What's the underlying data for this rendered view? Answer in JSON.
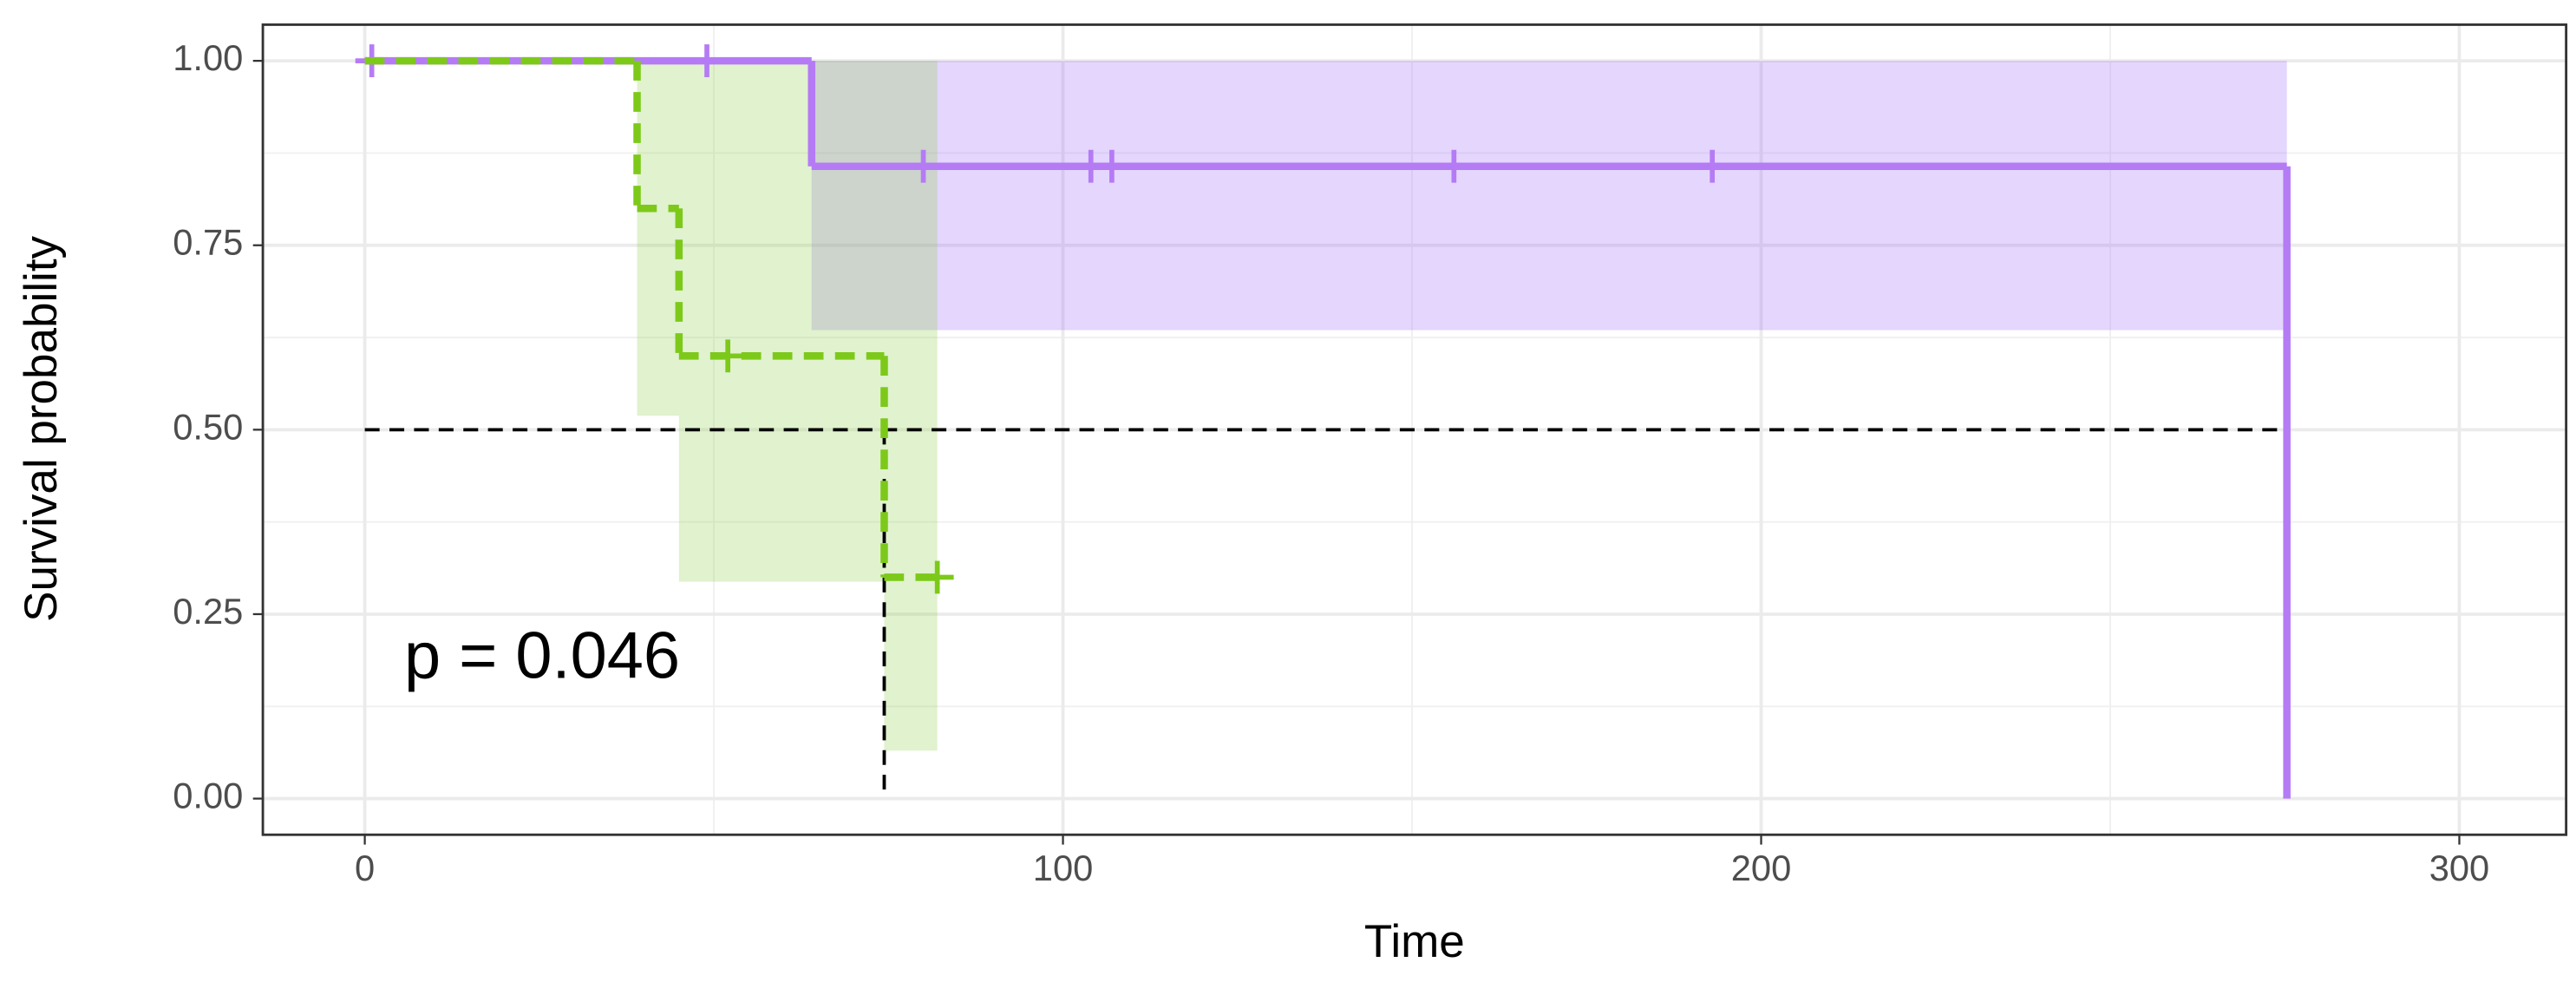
{
  "chart_data": {
    "type": "survival",
    "xlabel": "Time",
    "ylabel": "Survival probability",
    "annotation": "p = 0.046",
    "xlim": [
      -14.6,
      315.3
    ],
    "ylim": [
      -0.049,
      1.049
    ],
    "xticks": [
      0,
      100,
      200,
      300
    ],
    "yticks": [
      {
        "value": 0,
        "label": "0.00"
      },
      {
        "value": 0.25,
        "label": "0.25"
      },
      {
        "value": 0.5,
        "label": "0.50"
      },
      {
        "value": 0.75,
        "label": "0.75"
      },
      {
        "value": 1,
        "label": "1.00"
      }
    ],
    "xminor": [
      50,
      150,
      250
    ],
    "yminor": [
      0.125,
      0.375,
      0.625,
      0.875
    ],
    "grid": true,
    "series": [
      {
        "color": "#b57bf5",
        "ci_color": "#9d6cf7",
        "dash": false,
        "x": [
          0,
          64,
          275.3
        ],
        "values": [
          1,
          0.857,
          0
        ],
        "end": 275.3,
        "censor_x": [
          1,
          49,
          80,
          104,
          107,
          156,
          193
        ],
        "censor_values": [
          1,
          1,
          0.857,
          0.857,
          0.857,
          0.857,
          0.857
        ],
        "ci_start": [
          64
        ],
        "ci_end": [
          275.3
        ],
        "ci_lower": [
          0.635
        ],
        "ci_upper": [
          1
        ]
      },
      {
        "color": "#7dc91a",
        "ci_color": "#8fd14f",
        "dash": true,
        "x": [
          0,
          39,
          45,
          74.4
        ],
        "values": [
          1,
          0.8,
          0.6,
          0.3
        ],
        "end": 82,
        "censor_x": [
          52,
          82
        ],
        "censor_values": [
          0.6,
          0.3
        ],
        "ci_start": [
          39,
          45,
          74.4
        ],
        "ci_end": [
          45,
          74.4,
          82
        ],
        "ci_lower": [
          0.519,
          0.294,
          0.065
        ],
        "ci_upper": [
          1,
          1,
          1
        ]
      }
    ],
    "median": {
      "y": 0.5,
      "x": [
        74.4,
        275.3
      ]
    }
  }
}
